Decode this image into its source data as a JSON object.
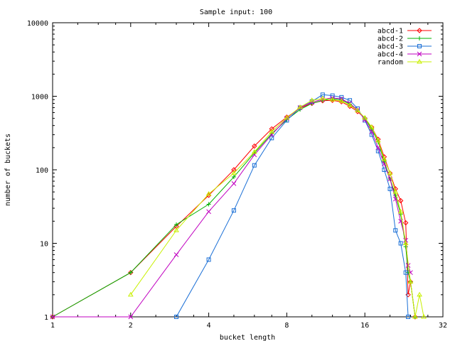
{
  "chart_data": {
    "type": "line",
    "title": "Sample input: 100",
    "xlabel": "bucket length",
    "ylabel": "number of buckets",
    "x_scale": "log2",
    "y_scale": "log10",
    "xlim": [
      1,
      32
    ],
    "ylim": [
      1,
      10000
    ],
    "x_ticks": [
      "1",
      "2",
      "4",
      "8",
      "16",
      "32"
    ],
    "y_ticks": [
      "1",
      "10",
      "100",
      "1000",
      "10000"
    ],
    "legend_position": "top-right",
    "grid": false,
    "series": [
      {
        "name": "abcd-1",
        "color": "#ff0000",
        "marker": "diamond",
        "points": [
          [
            1,
            1
          ],
          [
            2,
            4
          ],
          [
            3,
            17
          ],
          [
            4,
            45
          ],
          [
            5,
            100
          ],
          [
            6,
            210
          ],
          [
            7,
            360
          ],
          [
            8,
            520
          ],
          [
            9,
            690
          ],
          [
            10,
            800
          ],
          [
            11,
            870
          ],
          [
            12,
            880
          ],
          [
            13,
            840
          ],
          [
            14,
            730
          ],
          [
            15,
            620
          ],
          [
            16,
            500
          ],
          [
            17,
            380
          ],
          [
            18,
            260
          ],
          [
            19,
            150
          ],
          [
            20,
            90
          ],
          [
            21,
            55
          ],
          [
            22,
            38
          ],
          [
            23,
            19
          ],
          [
            23.5,
            2
          ],
          [
            24,
            3
          ],
          [
            25,
            1
          ]
        ]
      },
      {
        "name": "abcd-2",
        "color": "#00b000",
        "marker": "plus",
        "points": [
          [
            1,
            1
          ],
          [
            2,
            4
          ],
          [
            3,
            18
          ],
          [
            4,
            34
          ],
          [
            5,
            80
          ],
          [
            6,
            170
          ],
          [
            7,
            310
          ],
          [
            8,
            480
          ],
          [
            9,
            660
          ],
          [
            10,
            800
          ],
          [
            11,
            880
          ],
          [
            12,
            920
          ],
          [
            13,
            900
          ],
          [
            14,
            780
          ],
          [
            15,
            650
          ],
          [
            16,
            500
          ],
          [
            17,
            360
          ],
          [
            18,
            240
          ],
          [
            19,
            130
          ],
          [
            20,
            75
          ],
          [
            21,
            45
          ],
          [
            22,
            25
          ],
          [
            23,
            9
          ],
          [
            23.5,
            4
          ],
          [
            24,
            3
          ],
          [
            25,
            1
          ]
        ]
      },
      {
        "name": "abcd-3",
        "color": "#1a6fd6",
        "marker": "square",
        "points": [
          [
            3,
            1
          ],
          [
            4,
            6
          ],
          [
            5,
            28
          ],
          [
            6,
            115
          ],
          [
            7,
            270
          ],
          [
            8,
            470
          ],
          [
            9,
            700
          ],
          [
            10,
            850
          ],
          [
            11,
            1050
          ],
          [
            12,
            1020
          ],
          [
            13,
            970
          ],
          [
            14,
            880
          ],
          [
            15,
            680
          ],
          [
            16,
            470
          ],
          [
            17,
            300
          ],
          [
            18,
            180
          ],
          [
            19,
            100
          ],
          [
            20,
            55
          ],
          [
            21,
            15
          ],
          [
            22,
            10
          ],
          [
            23,
            4
          ],
          [
            23.5,
            1
          ]
        ]
      },
      {
        "name": "abcd-4",
        "color": "#c000c0",
        "marker": "cross",
        "points": [
          [
            1,
            1
          ],
          [
            2,
            1
          ],
          [
            3,
            7
          ],
          [
            4,
            27
          ],
          [
            5,
            65
          ],
          [
            6,
            160
          ],
          [
            7,
            300
          ],
          [
            8,
            500
          ],
          [
            9,
            700
          ],
          [
            10,
            830
          ],
          [
            11,
            910
          ],
          [
            12,
            950
          ],
          [
            13,
            920
          ],
          [
            14,
            800
          ],
          [
            15,
            650
          ],
          [
            16,
            480
          ],
          [
            17,
            330
          ],
          [
            18,
            200
          ],
          [
            19,
            120
          ],
          [
            20,
            75
          ],
          [
            21,
            40
          ],
          [
            22,
            20
          ],
          [
            23,
            11
          ],
          [
            23.5,
            5
          ],
          [
            24,
            4
          ]
        ]
      },
      {
        "name": "random",
        "color": "#c8f000",
        "marker": "triangle",
        "points": [
          [
            2,
            2
          ],
          [
            3,
            15
          ],
          [
            4,
            47
          ],
          [
            5,
            90
          ],
          [
            6,
            175
          ],
          [
            7,
            330
          ],
          [
            8,
            510
          ],
          [
            9,
            710
          ],
          [
            10,
            880
          ],
          [
            11,
            930
          ],
          [
            12,
            900
          ],
          [
            13,
            860
          ],
          [
            14,
            760
          ],
          [
            15,
            640
          ],
          [
            16,
            510
          ],
          [
            17,
            380
          ],
          [
            18,
            250
          ],
          [
            19,
            140
          ],
          [
            20,
            90
          ],
          [
            21,
            50
          ],
          [
            22,
            27
          ],
          [
            23,
            10
          ],
          [
            24,
            3
          ],
          [
            25,
            1
          ],
          [
            26,
            2
          ],
          [
            27,
            1
          ]
        ]
      }
    ]
  }
}
